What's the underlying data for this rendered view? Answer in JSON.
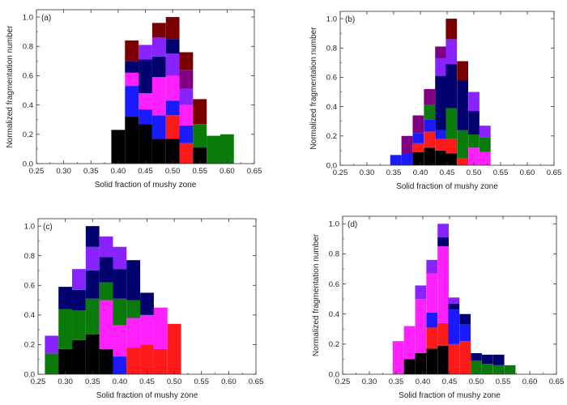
{
  "colors": {
    "black": "#000000",
    "red": "#ff1a1a",
    "green": "#0a7a0a",
    "blue": "#1a1aff",
    "navy": "#00006e",
    "magenta": "#ff20ff",
    "violet": "#8822ff",
    "purple": "#800080",
    "maroon": "#7a0000"
  },
  "chart_data": [
    {
      "type": "bar",
      "label": "(a)",
      "xlabel": "Solid fraction of mushy zone",
      "ylabel": "Normalized fragmentation number",
      "xlim": [
        0.25,
        0.65
      ],
      "ylim": [
        0,
        1.05
      ],
      "xticks": [
        "0.25",
        "0.30",
        "0.35",
        "0.40",
        "0.45",
        "0.50",
        "0.55",
        "0.60",
        "0.65"
      ],
      "yticks": [
        "0.0",
        "0.2",
        "0.4",
        "0.6",
        "0.8",
        "1.0"
      ],
      "bar_width": 0.025,
      "stacks": [
        {
          "x": 0.4,
          "segments": [
            {
              "color": "black",
              "value": 0.23
            }
          ]
        },
        {
          "x": 0.425,
          "segments": [
            {
              "color": "black",
              "value": 0.32
            },
            {
              "color": "blue",
              "value": 0.21
            },
            {
              "color": "magenta",
              "value": 0.09
            },
            {
              "color": "navy",
              "value": 0.08
            },
            {
              "color": "maroon",
              "value": 0.14
            }
          ]
        },
        {
          "x": 0.45,
          "segments": [
            {
              "color": "black",
              "value": 0.27
            },
            {
              "color": "blue",
              "value": 0.1
            },
            {
              "color": "magenta",
              "value": 0.11
            },
            {
              "color": "navy",
              "value": 0.23
            },
            {
              "color": "violet",
              "value": 0.1
            }
          ]
        },
        {
          "x": 0.475,
          "segments": [
            {
              "color": "black",
              "value": 0.17
            },
            {
              "color": "blue",
              "value": 0.16
            },
            {
              "color": "magenta",
              "value": 0.26
            },
            {
              "color": "navy",
              "value": 0.14
            },
            {
              "color": "violet",
              "value": 0.13
            },
            {
              "color": "maroon",
              "value": 0.1
            }
          ]
        },
        {
          "x": 0.5,
          "segments": [
            {
              "color": "black",
              "value": 0.17
            },
            {
              "color": "red",
              "value": 0.16
            },
            {
              "color": "blue",
              "value": 0.1
            },
            {
              "color": "magenta",
              "value": 0.17
            },
            {
              "color": "violet",
              "value": 0.15
            },
            {
              "color": "navy",
              "value": 0.1
            },
            {
              "color": "maroon",
              "value": 0.15
            }
          ]
        },
        {
          "x": 0.525,
          "segments": [
            {
              "color": "red",
              "value": 0.14
            },
            {
              "color": "blue",
              "value": 0.12
            },
            {
              "color": "magenta",
              "value": 0.14
            },
            {
              "color": "violet",
              "value": 0.11
            },
            {
              "color": "purple",
              "value": 0.13
            },
            {
              "color": "maroon",
              "value": 0.12
            }
          ]
        },
        {
          "x": 0.55,
          "segments": [
            {
              "color": "black",
              "value": 0.11
            },
            {
              "color": "green",
              "value": 0.16
            },
            {
              "color": "maroon",
              "value": 0.17
            }
          ]
        },
        {
          "x": 0.575,
          "segments": [
            {
              "color": "green",
              "value": 0.19
            }
          ]
        },
        {
          "x": 0.6,
          "segments": [
            {
              "color": "green",
              "value": 0.2
            }
          ]
        }
      ]
    },
    {
      "type": "bar",
      "label": "(b)",
      "xlabel": "Solid fraction of mushy zone",
      "ylabel": "Normalized fragmentation number",
      "xlim": [
        0.25,
        0.65
      ],
      "ylim": [
        0,
        1.05
      ],
      "xticks": [
        "0.25",
        "0.30",
        "0.35",
        "0.40",
        "0.45",
        "0.50",
        "0.55",
        "0.60",
        "0.65"
      ],
      "yticks": [
        "0.0",
        "0.2",
        "0.4",
        "0.6",
        "0.8",
        "1.0"
      ],
      "bar_width": 0.0208,
      "stacks": [
        {
          "x": 0.354,
          "segments": [
            {
              "color": "blue",
              "value": 0.07
            }
          ]
        },
        {
          "x": 0.375,
          "segments": [
            {
              "color": "blue",
              "value": 0.08
            },
            {
              "color": "purple",
              "value": 0.12
            }
          ]
        },
        {
          "x": 0.396,
          "segments": [
            {
              "color": "black",
              "value": 0.09
            },
            {
              "color": "red",
              "value": 0.06
            },
            {
              "color": "blue",
              "value": 0.07
            },
            {
              "color": "purple",
              "value": 0.12
            }
          ]
        },
        {
          "x": 0.417,
          "segments": [
            {
              "color": "black",
              "value": 0.12
            },
            {
              "color": "red",
              "value": 0.11
            },
            {
              "color": "blue",
              "value": 0.08
            },
            {
              "color": "green",
              "value": 0.1
            },
            {
              "color": "purple",
              "value": 0.11
            }
          ]
        },
        {
          "x": 0.438,
          "segments": [
            {
              "color": "black",
              "value": 0.1
            },
            {
              "color": "red",
              "value": 0.08
            },
            {
              "color": "blue",
              "value": 0.06
            },
            {
              "color": "navy",
              "value": 0.37
            },
            {
              "color": "violet",
              "value": 0.12
            },
            {
              "color": "purple",
              "value": 0.08
            }
          ]
        },
        {
          "x": 0.458,
          "segments": [
            {
              "color": "black",
              "value": 0.08
            },
            {
              "color": "red",
              "value": 0.1
            },
            {
              "color": "green",
              "value": 0.21
            },
            {
              "color": "navy",
              "value": 0.3
            },
            {
              "color": "violet",
              "value": 0.17
            },
            {
              "color": "maroon",
              "value": 0.14
            }
          ]
        },
        {
          "x": 0.479,
          "segments": [
            {
              "color": "red",
              "value": 0.05
            },
            {
              "color": "green",
              "value": 0.19
            },
            {
              "color": "navy",
              "value": 0.34
            },
            {
              "color": "maroon",
              "value": 0.13
            }
          ]
        },
        {
          "x": 0.5,
          "segments": [
            {
              "color": "magenta",
              "value": 0.12
            },
            {
              "color": "green",
              "value": 0.09
            },
            {
              "color": "navy",
              "value": 0.16
            },
            {
              "color": "violet",
              "value": 0.13
            }
          ]
        },
        {
          "x": 0.521,
          "segments": [
            {
              "color": "magenta",
              "value": 0.09
            },
            {
              "color": "green",
              "value": 0.1
            },
            {
              "color": "violet",
              "value": 0.08
            }
          ]
        }
      ]
    },
    {
      "type": "bar",
      "label": "(c)",
      "xlabel": "Solid fraction of mushy zone",
      "ylabel": "",
      "xlim": [
        0.25,
        0.65
      ],
      "ylim": [
        0,
        1.05
      ],
      "xticks": [
        "0.25",
        "0.30",
        "0.35",
        "0.40",
        "0.45",
        "0.50",
        "0.55",
        "0.60",
        "0.65"
      ],
      "yticks": [
        "0.0",
        "0.2",
        "0.4",
        "0.6",
        "0.8",
        "1.0"
      ],
      "bar_width": 0.025,
      "stacks": [
        {
          "x": 0.275,
          "segments": [
            {
              "color": "green",
              "value": 0.14
            },
            {
              "color": "violet",
              "value": 0.12
            }
          ]
        },
        {
          "x": 0.3,
          "segments": [
            {
              "color": "black",
              "value": 0.17
            },
            {
              "color": "green",
              "value": 0.27
            },
            {
              "color": "navy",
              "value": 0.15
            }
          ]
        },
        {
          "x": 0.325,
          "segments": [
            {
              "color": "black",
              "value": 0.23
            },
            {
              "color": "green",
              "value": 0.2
            },
            {
              "color": "navy",
              "value": 0.14
            },
            {
              "color": "violet",
              "value": 0.14
            }
          ]
        },
        {
          "x": 0.35,
          "segments": [
            {
              "color": "black",
              "value": 0.27
            },
            {
              "color": "green",
              "value": 0.24
            },
            {
              "color": "navy",
              "value": 0.19
            },
            {
              "color": "violet",
              "value": 0.16
            },
            {
              "color": "navy",
              "value": 0.14
            }
          ]
        },
        {
          "x": 0.375,
          "segments": [
            {
              "color": "black",
              "value": 0.17
            },
            {
              "color": "magenta",
              "value": 0.33
            },
            {
              "color": "green",
              "value": 0.12
            },
            {
              "color": "navy",
              "value": 0.17
            },
            {
              "color": "violet",
              "value": 0.14
            }
          ]
        },
        {
          "x": 0.4,
          "segments": [
            {
              "color": "blue",
              "value": 0.12
            },
            {
              "color": "magenta",
              "value": 0.21
            },
            {
              "color": "green",
              "value": 0.18
            },
            {
              "color": "navy",
              "value": 0.2
            },
            {
              "color": "violet",
              "value": 0.15
            }
          ]
        },
        {
          "x": 0.425,
          "segments": [
            {
              "color": "red",
              "value": 0.18
            },
            {
              "color": "magenta",
              "value": 0.2
            },
            {
              "color": "green",
              "value": 0.12
            },
            {
              "color": "navy",
              "value": 0.27
            }
          ]
        },
        {
          "x": 0.45,
          "segments": [
            {
              "color": "red",
              "value": 0.2
            },
            {
              "color": "magenta",
              "value": 0.2
            },
            {
              "color": "navy",
              "value": 0.15
            }
          ]
        },
        {
          "x": 0.475,
          "segments": [
            {
              "color": "red",
              "value": 0.17
            },
            {
              "color": "magenta",
              "value": 0.28
            }
          ]
        },
        {
          "x": 0.5,
          "segments": [
            {
              "color": "red",
              "value": 0.34
            }
          ]
        }
      ]
    },
    {
      "type": "bar",
      "label": "(d)",
      "xlabel": "Solid fraction of mushy zone",
      "ylabel": "Normalized fragmentation number",
      "xlim": [
        0.25,
        0.65
      ],
      "ylim": [
        0,
        1.05
      ],
      "xticks": [
        "0.25",
        "0.30",
        "0.35",
        "0.40",
        "0.45",
        "0.50",
        "0.55",
        "0.60",
        "0.65"
      ],
      "yticks": [
        "0.0",
        "0.2",
        "0.4",
        "0.6",
        "0.8",
        "1.0"
      ],
      "bar_width": 0.0208,
      "stacks": [
        {
          "x": 0.354,
          "segments": [
            {
              "color": "magenta",
              "value": 0.22
            }
          ]
        },
        {
          "x": 0.375,
          "segments": [
            {
              "color": "black",
              "value": 0.1
            },
            {
              "color": "magenta",
              "value": 0.22
            }
          ]
        },
        {
          "x": 0.396,
          "segments": [
            {
              "color": "black",
              "value": 0.14
            },
            {
              "color": "magenta",
              "value": 0.36
            },
            {
              "color": "violet",
              "value": 0.09
            }
          ]
        },
        {
          "x": 0.417,
          "segments": [
            {
              "color": "black",
              "value": 0.17
            },
            {
              "color": "red",
              "value": 0.14
            },
            {
              "color": "blue",
              "value": 0.1
            },
            {
              "color": "magenta",
              "value": 0.26
            },
            {
              "color": "violet",
              "value": 0.09
            }
          ]
        },
        {
          "x": 0.438,
          "segments": [
            {
              "color": "black",
              "value": 0.19
            },
            {
              "color": "red",
              "value": 0.15
            },
            {
              "color": "magenta",
              "value": 0.51
            },
            {
              "color": "navy",
              "value": 0.06
            },
            {
              "color": "violet",
              "value": 0.09
            }
          ]
        },
        {
          "x": 0.458,
          "segments": [
            {
              "color": "red",
              "value": 0.2
            },
            {
              "color": "blue",
              "value": 0.23
            },
            {
              "color": "navy",
              "value": 0.04
            },
            {
              "color": "violet",
              "value": 0.04
            }
          ]
        },
        {
          "x": 0.479,
          "segments": [
            {
              "color": "red",
              "value": 0.22
            },
            {
              "color": "blue",
              "value": 0.11
            },
            {
              "color": "navy",
              "value": 0.07
            }
          ]
        },
        {
          "x": 0.5,
          "segments": [
            {
              "color": "green",
              "value": 0.09
            },
            {
              "color": "navy",
              "value": 0.05
            }
          ]
        },
        {
          "x": 0.521,
          "segments": [
            {
              "color": "green",
              "value": 0.07
            },
            {
              "color": "navy",
              "value": 0.06
            }
          ]
        },
        {
          "x": 0.542,
          "segments": [
            {
              "color": "green",
              "value": 0.06
            },
            {
              "color": "navy",
              "value": 0.07
            }
          ]
        },
        {
          "x": 0.563,
          "segments": [
            {
              "color": "green",
              "value": 0.06
            }
          ]
        }
      ]
    }
  ]
}
